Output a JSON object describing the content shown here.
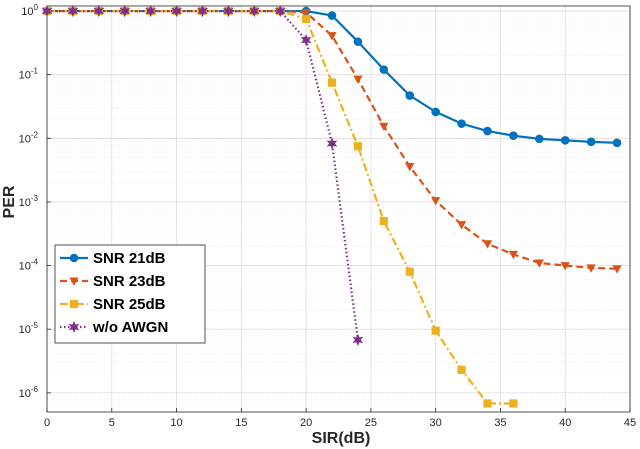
{
  "chart_data": {
    "type": "line",
    "title": "",
    "xlabel": "SIR(dB)",
    "ylabel": "PER",
    "xlim": [
      0,
      45
    ],
    "ylim": [
      5e-07,
      1.2
    ],
    "yscale": "log",
    "grid": true,
    "legend_position": "bottom-left",
    "x_ticks": [
      "0",
      "5",
      "10",
      "15",
      "20",
      "25",
      "30",
      "35",
      "40",
      "45"
    ],
    "y_ticks": [
      {
        "value": 1,
        "base": "10",
        "exp": "0"
      },
      {
        "value": 0.1,
        "base": "10",
        "exp": "-1"
      },
      {
        "value": 0.01,
        "base": "10",
        "exp": "-2"
      },
      {
        "value": 0.001,
        "base": "10",
        "exp": "-3"
      },
      {
        "value": 0.0001,
        "base": "10",
        "exp": "-4"
      },
      {
        "value": 1e-05,
        "base": "10",
        "exp": "-5"
      },
      {
        "value": 1e-06,
        "base": "10",
        "exp": "-6"
      }
    ],
    "series": [
      {
        "name": "SNR 21dB",
        "color": "#0072BD",
        "line": "solid",
        "marker": "circle",
        "x": [
          0,
          2,
          4,
          6,
          8,
          10,
          12,
          14,
          16,
          18,
          20,
          22,
          24,
          26,
          28,
          30,
          32,
          34,
          36,
          38,
          40,
          42,
          44
        ],
        "y": [
          1,
          1,
          1,
          1,
          1,
          1,
          1,
          1,
          1,
          1,
          1,
          0.85,
          0.33,
          0.12,
          0.047,
          0.026,
          0.017,
          0.013,
          0.011,
          0.0098,
          0.0093,
          0.0088,
          0.0085
        ]
      },
      {
        "name": "SNR 23dB",
        "color": "#D95319",
        "line": "dashed",
        "marker": "triangle",
        "x": [
          0,
          2,
          4,
          6,
          8,
          10,
          12,
          14,
          16,
          18,
          20,
          22,
          24,
          26,
          28,
          30,
          32,
          34,
          36,
          38,
          40,
          42,
          44
        ],
        "y": [
          1,
          1,
          1,
          1,
          1,
          1,
          1,
          1,
          1,
          1,
          0.95,
          0.41,
          0.085,
          0.0155,
          0.0036,
          0.00105,
          0.00044,
          0.00022,
          0.00015,
          0.00011,
          0.0001,
          9.2e-05,
          8.9e-05
        ]
      },
      {
        "name": "SNR 25dB",
        "color": "#EDB120",
        "line": "dashdot",
        "marker": "square",
        "x": [
          0,
          2,
          4,
          6,
          8,
          10,
          12,
          14,
          16,
          18,
          20,
          22,
          24,
          26,
          28,
          30,
          32,
          34,
          36
        ],
        "y": [
          1,
          1,
          1,
          1,
          1,
          1,
          1,
          1,
          1,
          1,
          0.75,
          0.075,
          0.0075,
          0.0005,
          8e-05,
          9.5e-06,
          2.3e-06,
          6.8e-07,
          6.8e-07
        ]
      },
      {
        "name": "w/o AWGN",
        "color": "#7E2F8E",
        "line": "dotted",
        "marker": "star",
        "x": [
          0,
          2,
          4,
          6,
          8,
          10,
          12,
          14,
          16,
          18,
          20,
          22,
          24
        ],
        "y": [
          1,
          1,
          1,
          1,
          1,
          1,
          1,
          1,
          1,
          1,
          0.35,
          0.0083,
          6.8e-06
        ]
      }
    ]
  }
}
